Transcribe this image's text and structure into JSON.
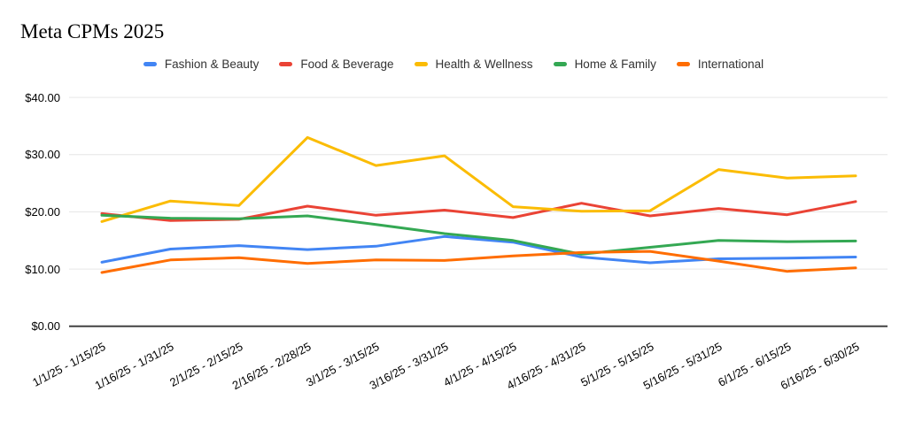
{
  "title": "Meta CPMs 2025",
  "chart_data": {
    "type": "line",
    "title": "Meta CPMs 2025",
    "xlabel": "",
    "ylabel": "",
    "ylim": [
      0,
      40
    ],
    "grid": true,
    "legend_position": "top",
    "y_ticks": [
      {
        "value": 0,
        "label": "$0.00"
      },
      {
        "value": 10,
        "label": "$10.00"
      },
      {
        "value": 20,
        "label": "$20.00"
      },
      {
        "value": 30,
        "label": "$30.00"
      },
      {
        "value": 40,
        "label": "$40.00"
      }
    ],
    "categories": [
      "1/1/25 - 1/15/25",
      "1/16/25 - 1/31/25",
      "2/1/25 - 2/15/25",
      "2/16/25 - 2/28/25",
      "3/1/25 - 3/15/25",
      "3/16/25 - 3/31/25",
      "4/1/25 - 4/15/25",
      "4/16/25 - 4/31/25",
      "5/1/25 - 5/15/25",
      "5/16/25 - 5/31/25",
      "6/1/25 - 6/15/25",
      "6/16/25 - 6/30/25"
    ],
    "series": [
      {
        "name": "Fashion & Beauty",
        "color": "#4285F4",
        "values": [
          11.2,
          13.5,
          14.1,
          13.4,
          14.0,
          15.7,
          14.7,
          12.1,
          11.1,
          11.8,
          11.9,
          12.1
        ]
      },
      {
        "name": "Food & Beverage",
        "color": "#EA4335",
        "values": [
          19.7,
          18.5,
          18.7,
          21.0,
          19.4,
          20.3,
          19.0,
          21.5,
          19.3,
          20.6,
          19.5,
          21.8
        ]
      },
      {
        "name": "Health & Wellness",
        "color": "#FBBC04",
        "values": [
          18.3,
          21.9,
          21.1,
          33.0,
          28.1,
          29.8,
          20.9,
          20.1,
          20.2,
          27.4,
          25.9,
          26.3
        ]
      },
      {
        "name": "Home & Family",
        "color": "#34A853",
        "values": [
          19.4,
          18.9,
          18.8,
          19.3,
          17.8,
          16.2,
          15.0,
          12.6,
          13.8,
          15.0,
          14.8,
          14.9
        ]
      },
      {
        "name": "International",
        "color": "#FF6D01",
        "values": [
          9.4,
          11.6,
          12.0,
          11.0,
          11.6,
          11.5,
          12.3,
          12.9,
          13.1,
          11.4,
          9.6,
          10.2
        ]
      }
    ]
  }
}
